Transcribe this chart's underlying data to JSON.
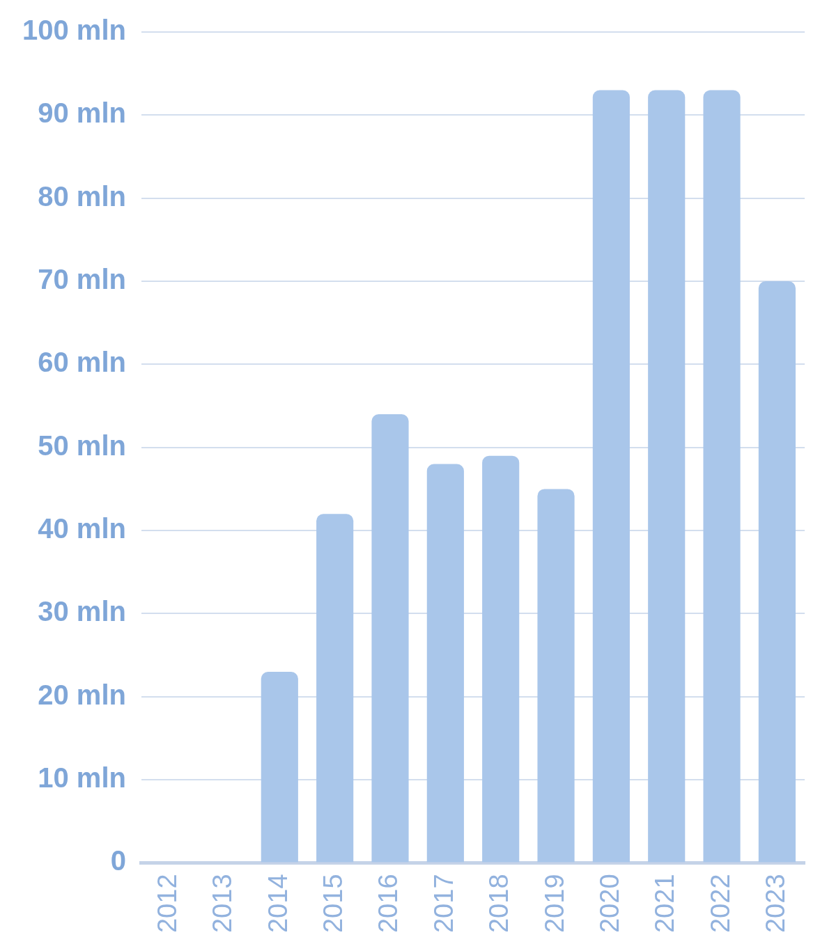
{
  "chart_data": {
    "type": "bar",
    "categories": [
      "2012",
      "2013",
      "2014",
      "2015",
      "2016",
      "2017",
      "2018",
      "2019",
      "2020",
      "2021",
      "2022",
      "2023"
    ],
    "values": [
      null,
      null,
      23,
      42,
      54,
      48,
      49,
      45,
      93,
      93,
      93,
      70
    ],
    "color": "#a9c6ea",
    "ylim": [
      0,
      100
    ],
    "yticks": [
      0,
      {
        "value": 10,
        "label": "10 mln"
      },
      {
        "value": 20,
        "label": "20 mln"
      },
      {
        "value": 30,
        "label": "30 mln"
      },
      {
        "value": 40,
        "label": "40 mln"
      },
      {
        "value": 50,
        "label": "50 mln"
      },
      {
        "value": 60,
        "label": "60 mln"
      },
      {
        "value": 70,
        "label": "70 mln"
      },
      {
        "value": 80,
        "label": "80 mln"
      },
      {
        "value": 90,
        "label": "90 mln"
      },
      {
        "value": 100,
        "label": "100 mln"
      }
    ],
    "grid": "y"
  }
}
